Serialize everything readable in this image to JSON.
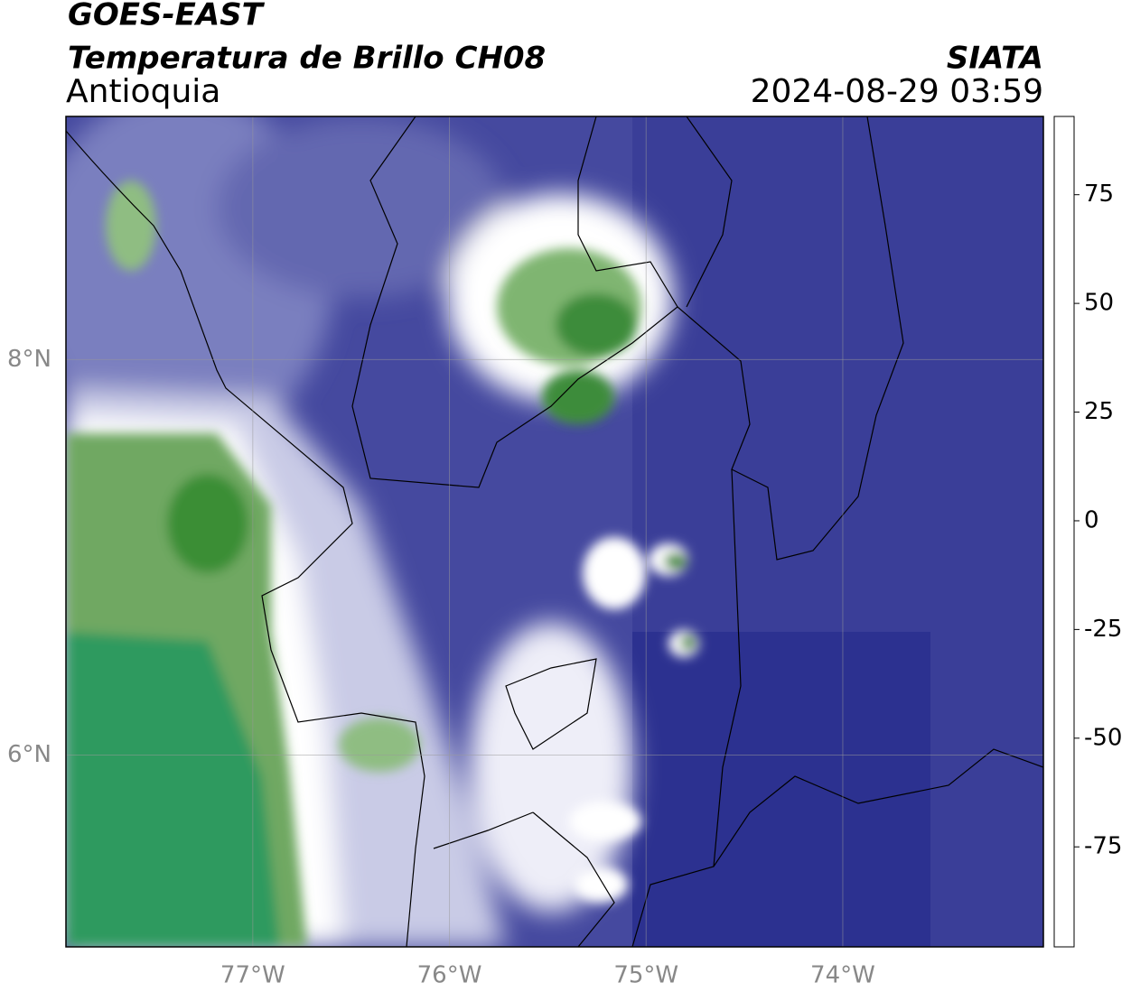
{
  "header": {
    "source": "GOES-EAST",
    "product": "Temperatura de Brillo CH08",
    "region": "Antioquia",
    "agency": "SIATA",
    "datetime": "2024-08-29 03:59"
  },
  "map": {
    "xlim": [
      -77.95,
      -72.98
    ],
    "ylim": [
      5.03,
      9.23
    ],
    "xticks": [
      {
        "value": -77,
        "label": "77°W"
      },
      {
        "value": -76,
        "label": "76°W"
      },
      {
        "value": -75,
        "label": "75°W"
      },
      {
        "value": -74,
        "label": "74°W"
      }
    ],
    "yticks": [
      {
        "value": 8,
        "label": "8°N"
      },
      {
        "value": 6,
        "label": "6°N"
      }
    ],
    "grid": true
  },
  "colorbar": {
    "lim": [
      -98,
      93
    ],
    "ticks": [
      75,
      50,
      25,
      0,
      -25,
      -50,
      -75
    ],
    "colormap": [
      {
        "value": -98,
        "color": "#ffffff"
      },
      {
        "value": -94,
        "color": "#ffffff"
      },
      {
        "value": -94,
        "color": "#17e6d8"
      },
      {
        "value": -80,
        "color": "#2aa67a"
      },
      {
        "value": -62,
        "color": "#3d8f3a"
      },
      {
        "value": -55,
        "color": "#b9d4ad"
      },
      {
        "value": -50,
        "color": "#ffffff"
      },
      {
        "value": -44,
        "color": "#8a8ec8"
      },
      {
        "value": -34,
        "color": "#3e429c"
      },
      {
        "value": -28,
        "color": "#0e1880"
      },
      {
        "value": -22,
        "color": "#3a3a4a"
      },
      {
        "value": -16,
        "color": "#9a9a80"
      },
      {
        "value": -8,
        "color": "#f2e600"
      },
      {
        "value": -2,
        "color": "#ff9a00"
      },
      {
        "value": 8,
        "color": "#ff1800"
      },
      {
        "value": 8,
        "color": "#000000"
      },
      {
        "value": 93,
        "color": "#000000"
      }
    ]
  }
}
